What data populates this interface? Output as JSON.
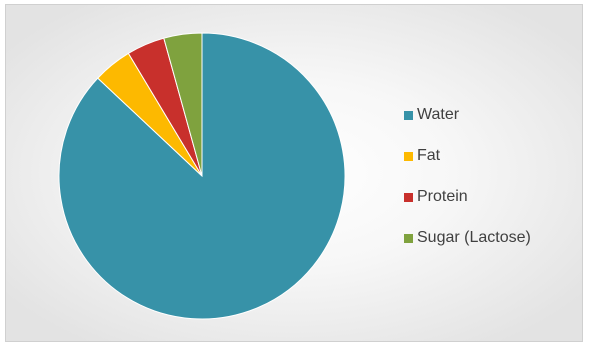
{
  "chart_data": {
    "type": "pie",
    "title": "",
    "categories": [
      "Water",
      "Fat",
      "Protein",
      "Sugar (Lactose)"
    ],
    "values": [
      87,
      4.4,
      4.3,
      4.3
    ],
    "colors": [
      "#3792a8",
      "#fdb900",
      "#c8302c",
      "#7fa23e"
    ],
    "start_angle_deg": 0,
    "direction": "clockwise",
    "legend_position": "right",
    "legend": [
      {
        "label": "Water",
        "color": "#3792a8"
      },
      {
        "label": "Fat",
        "color": "#fdb900"
      },
      {
        "label": "Protein",
        "color": "#c8302c"
      },
      {
        "label": "Sugar (Lactose)",
        "color": "#7fa23e"
      }
    ]
  }
}
